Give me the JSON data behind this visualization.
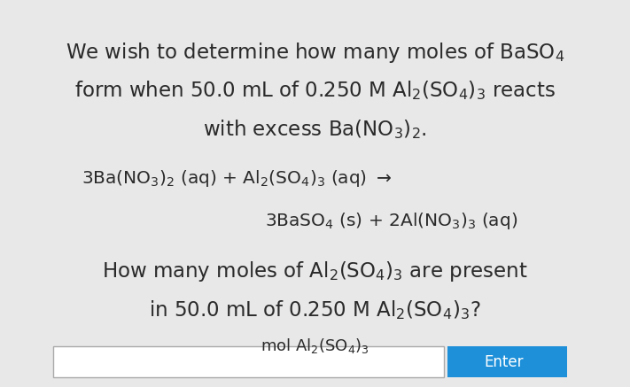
{
  "background_color": "#e8e8e8",
  "text_color": "#2a2a2a",
  "figsize": [
    7.11,
    4.37
  ],
  "dpi": 100,
  "font_size_title": 16.5,
  "font_size_eq": 14.5,
  "font_size_q": 16.5,
  "font_size_ans": 13,
  "line1": "We wish to determine how many moles of BaSO$_4$",
  "line2": "form when 50.0 mL of 0.250 M Al$_2$(SO$_4$)$_3$ reacts",
  "line3": "with excess Ba(NO$_3$)$_2$.",
  "eq1": "3Ba(NO$_3$)$_2$ (aq) + Al$_2$(SO$_4$)$_3$ (aq) $\\rightarrow$",
  "eq2": "3BaSO$_4$ (s) + 2Al(NO$_3$)$_3$ (aq)",
  "q1": "How many moles of Al$_2$(SO$_4$)$_3$ are present",
  "q2": "in 50.0 mL of 0.250 M Al$_2$(SO$_4$)$_3$?",
  "ans_label": "mol Al$_2$(SO$_4$)$_3$",
  "enter_color": "#1e90d9"
}
